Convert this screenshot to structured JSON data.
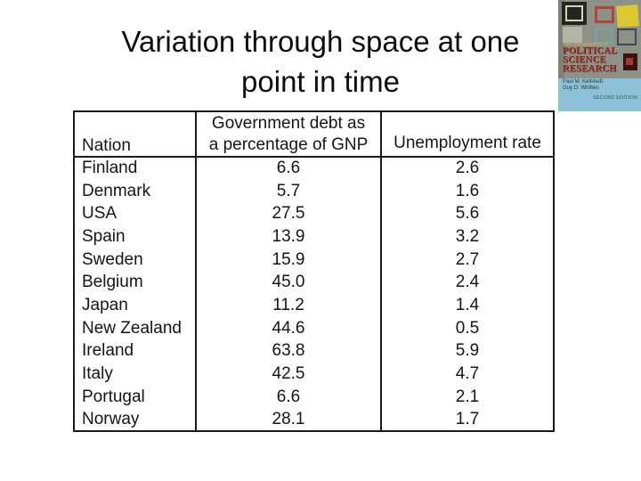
{
  "slide": {
    "title": "Variation through space at one point in time",
    "title_line1": "Variation through space at one",
    "title_line2": "point in time"
  },
  "table": {
    "col_headers": {
      "nation": "Nation",
      "debt_line1": "Government debt as",
      "debt_line2": "a percentage of GNP",
      "unemployment": "Unemployment rate"
    },
    "rows": [
      {
        "nation": "Finland",
        "debt": "6.6",
        "unemployment": "2.6"
      },
      {
        "nation": "Denmark",
        "debt": "5.7",
        "unemployment": "1.6"
      },
      {
        "nation": "USA",
        "debt": "27.5",
        "unemployment": "5.6"
      },
      {
        "nation": "Spain",
        "debt": "13.9",
        "unemployment": "3.2"
      },
      {
        "nation": "Sweden",
        "debt": "15.9",
        "unemployment": "2.7"
      },
      {
        "nation": "Belgium",
        "debt": "45.0",
        "unemployment": "2.4"
      },
      {
        "nation": "Japan",
        "debt": "11.2",
        "unemployment": "1.4"
      },
      {
        "nation": "New Zealand",
        "debt": "44.6",
        "unemployment": "0.5"
      },
      {
        "nation": "Ireland",
        "debt": "63.8",
        "unemployment": "5.9"
      },
      {
        "nation": "Italy",
        "debt": "42.5",
        "unemployment": "4.7"
      },
      {
        "nation": "Portugal",
        "debt": "6.6",
        "unemployment": "2.1"
      },
      {
        "nation": "Norway",
        "debt": "28.1",
        "unemployment": "1.7"
      }
    ]
  },
  "book_cover": {
    "series_title": "The Fundamentals of",
    "title_lines": {
      "0": "POLITICAL",
      "1": "SCIENCE",
      "2": "RESEARCH"
    },
    "authors": {
      "0": "Paul M. Kellstedt",
      "1": "Guy D. Whitten"
    },
    "edition": "SECOND EDITION",
    "colors": {
      "background_gray": "#8e9187",
      "background_blue": "#8cc0d6",
      "title_red": "#a82e22",
      "series_yellow": "#d9b347",
      "square_yellow": "#ddc832",
      "square_red_outline": "#b0453a",
      "square_teal_outline": "#6aa8a4"
    }
  },
  "chart_data": {
    "type": "table",
    "title": "Variation through space at one point in time",
    "columns": [
      "Nation",
      "Government debt as a percentage of GNP",
      "Unemployment rate"
    ],
    "rows": [
      [
        "Finland",
        6.6,
        2.6
      ],
      [
        "Denmark",
        5.7,
        1.6
      ],
      [
        "USA",
        27.5,
        5.6
      ],
      [
        "Spain",
        13.9,
        3.2
      ],
      [
        "Sweden",
        15.9,
        2.7
      ],
      [
        "Belgium",
        45.0,
        2.4
      ],
      [
        "Japan",
        11.2,
        1.4
      ],
      [
        "New Zealand",
        44.6,
        0.5
      ],
      [
        "Ireland",
        63.8,
        5.9
      ],
      [
        "Italy",
        42.5,
        4.7
      ],
      [
        "Portugal",
        6.6,
        2.1
      ],
      [
        "Norway",
        28.1,
        1.7
      ]
    ]
  }
}
